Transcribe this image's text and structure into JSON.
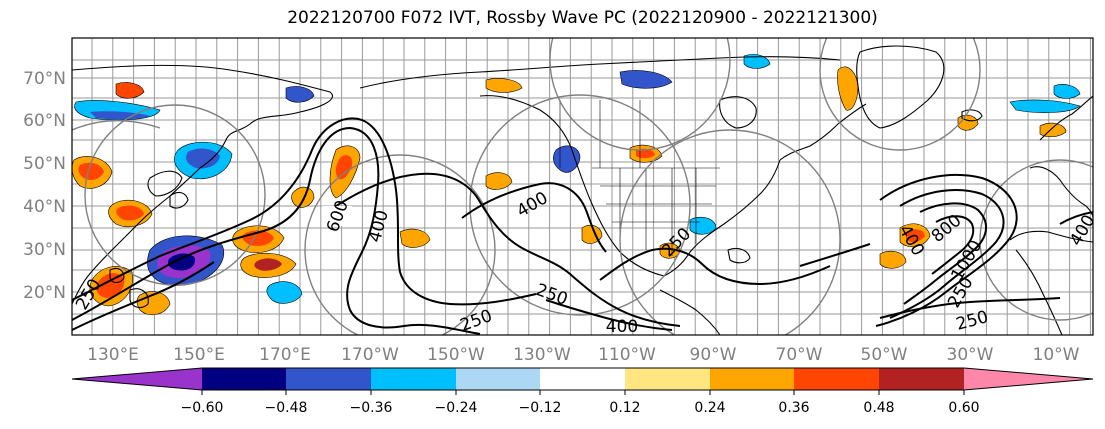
{
  "title": "2022120700 F072 IVT, Rossby Wave PC (2022120900 - 2022121300)",
  "lat_labels": [
    "70°N",
    "60°N",
    "50°N",
    "40°N",
    "30°N",
    "20°N"
  ],
  "lon_labels": [
    "130°E",
    "150°E",
    "170°E",
    "170°W",
    "150°W",
    "130°W",
    "110°W",
    "90°W",
    "70°W",
    "50°W",
    "30°W",
    "10°W"
  ],
  "ivt_contour_labels": [
    "600",
    "400",
    "400",
    "250",
    "250",
    "400",
    "250",
    "400",
    "800",
    "1000",
    "250",
    "250",
    "250",
    "400"
  ],
  "colorbar": {
    "ticks": [
      "−0.60",
      "−0.48",
      "−0.36",
      "−0.24",
      "−0.12",
      "0.12",
      "0.24",
      "0.36",
      "0.48",
      "0.60"
    ],
    "colors": [
      "#9933cc",
      "#000080",
      "#3355cc",
      "#00bfff",
      "#add8f5",
      "#ffffff",
      "#ffe680",
      "#ffa500",
      "#ff4500",
      "#b22222",
      "#ff88aa"
    ]
  },
  "colors": {
    "land_outline": "#000000",
    "grid": "#999999",
    "ivt_contour": "#000000",
    "rossby_contour": "#808080"
  }
}
